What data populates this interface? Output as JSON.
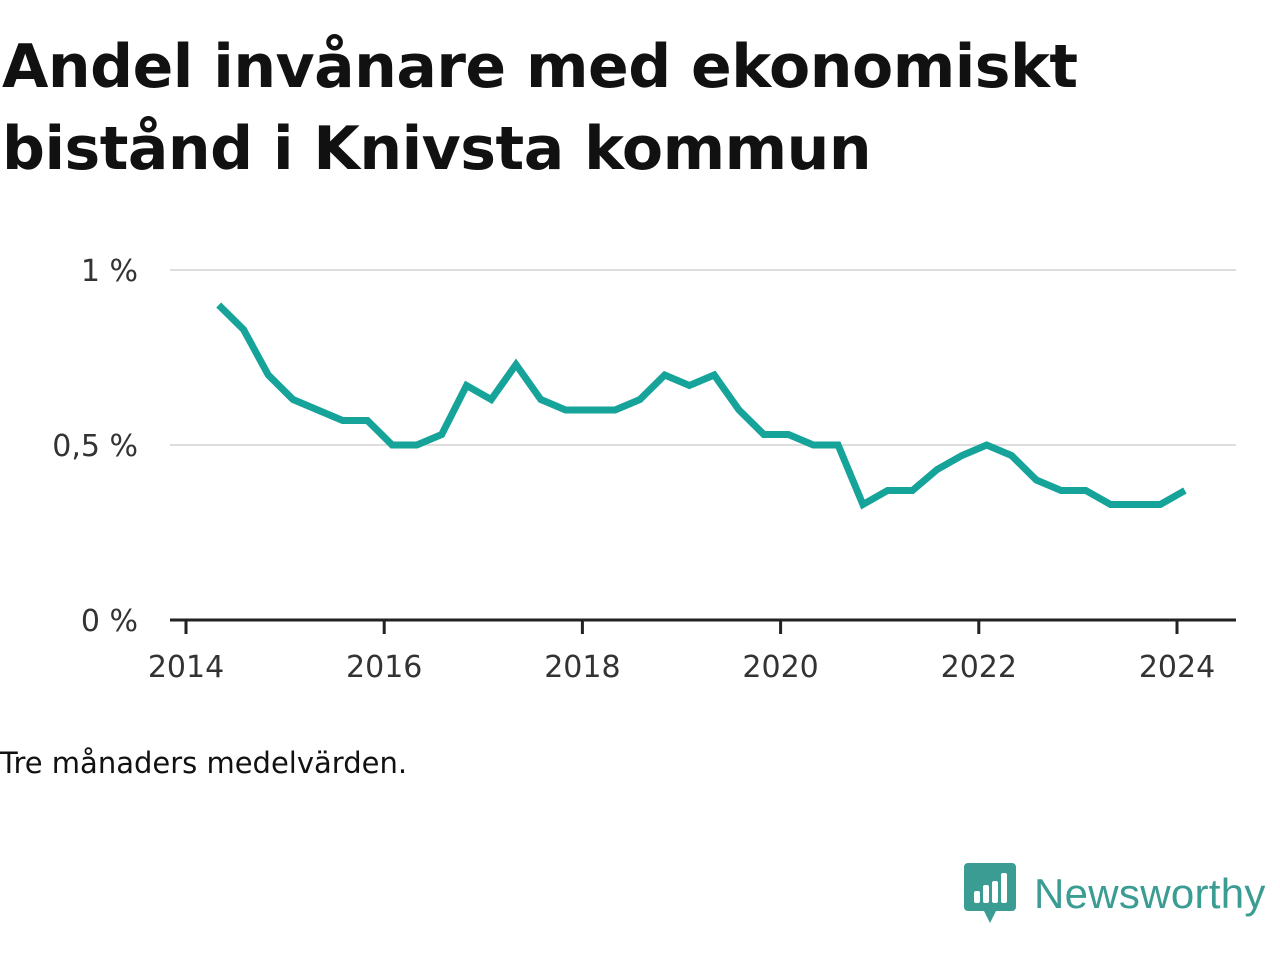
{
  "title_line1": "Andel invånare med ekonomiskt",
  "title_line2": "bistånd i Knivsta kommun",
  "note": "Tre månaders medelvärden.",
  "brand": {
    "name": "Newsworthy",
    "logo_icon": "bar-chart-speech-bubble-icon",
    "color": "#3a9c92"
  },
  "colors": {
    "line": "#16a39a",
    "grid": "#dddddd",
    "axis": "#222222"
  },
  "chart_data": {
    "type": "line",
    "title": "Andel invånare med ekonomiskt bistånd i Knivsta kommun",
    "xlim": [
      2014,
      2024.57
    ],
    "ylim": [
      0,
      1
    ],
    "x_ticks": [
      {
        "value": 2014,
        "label": "2014"
      },
      {
        "value": 2016,
        "label": "2016"
      },
      {
        "value": 2018,
        "label": "2018"
      },
      {
        "value": 2020,
        "label": "2020"
      },
      {
        "value": 2022,
        "label": "2022"
      },
      {
        "value": 2024,
        "label": "2024"
      }
    ],
    "y_ticks": [
      {
        "value": 0,
        "label": "0 %"
      },
      {
        "value": 0.5,
        "label": "0,5 %"
      },
      {
        "value": 1,
        "label": "1 %"
      }
    ],
    "grid": true,
    "series": [
      {
        "x": [
          2014.33,
          2014.58,
          2014.83,
          2015.08,
          2015.33,
          2015.58,
          2015.83,
          2016.08,
          2016.33,
          2016.58,
          2016.83,
          2017.08,
          2017.33,
          2017.58,
          2017.83,
          2018.08,
          2018.33,
          2018.58,
          2018.83,
          2019.08,
          2019.33,
          2019.58,
          2019.83,
          2020.08,
          2020.33,
          2020.58,
          2020.83,
          2021.08,
          2021.33,
          2021.58,
          2021.83,
          2022.08,
          2022.33,
          2022.58,
          2022.83,
          2023.08,
          2023.33,
          2023.58,
          2023.83,
          2024.08
        ],
        "values": [
          0.9,
          0.83,
          0.7,
          0.63,
          0.6,
          0.57,
          0.57,
          0.5,
          0.5,
          0.53,
          0.67,
          0.63,
          0.73,
          0.63,
          0.6,
          0.6,
          0.6,
          0.63,
          0.7,
          0.67,
          0.7,
          0.6,
          0.53,
          0.53,
          0.5,
          0.5,
          0.33,
          0.37,
          0.37,
          0.43,
          0.47,
          0.5,
          0.47,
          0.4,
          0.37,
          0.37,
          0.33,
          0.33,
          0.33,
          0.37
        ]
      }
    ]
  }
}
